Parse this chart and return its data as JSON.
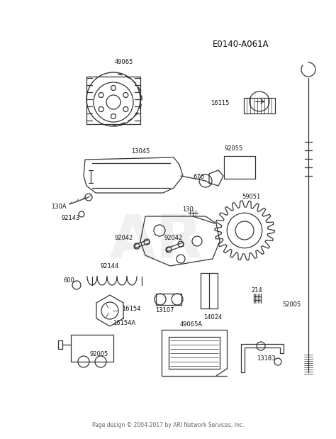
{
  "bg_color": "#ffffff",
  "diagram_id": "E0140-A061A",
  "footer_text": "Page design © 2004-2017 by ARI Network Services, Inc.",
  "watermark_text": "AR",
  "line_color": "#333333",
  "text_color": "#111111",
  "watermark_color": "#cccccc",
  "label_fontsize": 6.0,
  "title_fontsize": 8.5,
  "fig_width": 4.74,
  "fig_height": 6.19,
  "dpi": 100
}
